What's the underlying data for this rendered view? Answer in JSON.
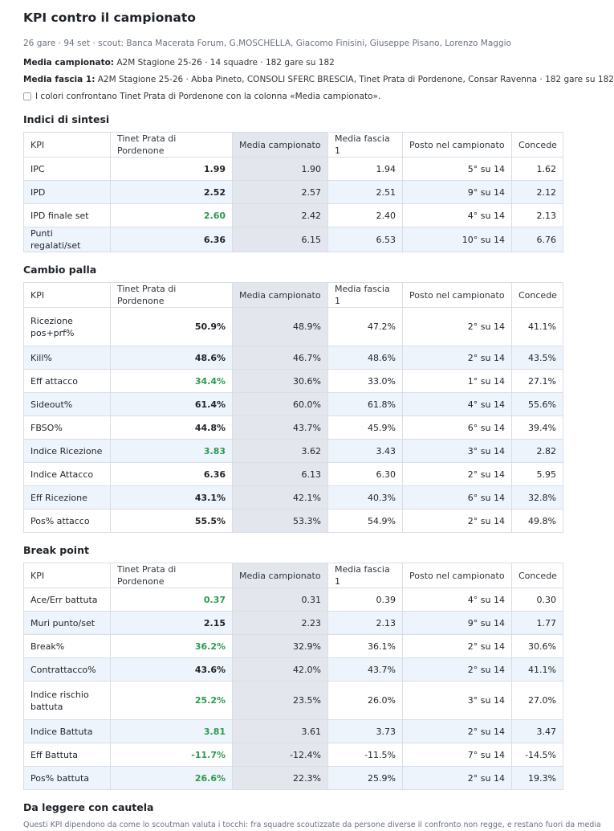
{
  "page": {
    "title": "KPI contro il campionato",
    "meta": "26 gare · 94 set · scout: Banca Macerata Forum, G.MOSCHELLA, Giacomo Finisini, Giuseppe Pisano, Lorenzo Maggio",
    "league_label": "Media campionato:",
    "league_text": "A2M Stagione 25-26 · 14 squadre · 182 gare su 182",
    "band_label": "Media fascia 1:",
    "band_text": "A2M Stagione 25-26 · Abba Pineto, CONSOLI SFERC BRESCIA, Tinet Prata di Pordenone, Consar Ravenna · 182 gare su 182",
    "legend_text": "I colori confrontano Tinet Prata di Pordenone con la colonna «Media campionato»."
  },
  "headers": [
    "KPI",
    "Tinet Prata di Pordenone",
    "Media campionato",
    "Media fascia 1",
    "Posto nel campionato",
    "Concede"
  ],
  "sections": [
    {
      "title": "Indici di sintesi",
      "rows": [
        {
          "kpi": "IPC",
          "team": "1.99",
          "league": "1.90",
          "band": "1.94",
          "rank": "5° su 14",
          "concede": "1.62",
          "good": false
        },
        {
          "kpi": "IPD",
          "team": "2.52",
          "league": "2.57",
          "band": "2.51",
          "rank": "9° su 14",
          "concede": "2.12",
          "good": false
        },
        {
          "kpi": "IPD finale set",
          "team": "2.60",
          "league": "2.42",
          "band": "2.40",
          "rank": "4° su 14",
          "concede": "2.13",
          "good": true
        },
        {
          "kpi": "Punti regalati/set",
          "team": "6.36",
          "league": "6.15",
          "band": "6.53",
          "rank": "10° su 14",
          "concede": "6.76",
          "good": false
        }
      ]
    },
    {
      "title": "Cambio palla",
      "rows": [
        {
          "kpi": "Ricezione pos+prf%",
          "team": "50.9%",
          "league": "48.9%",
          "band": "47.2%",
          "rank": "2° su 14",
          "concede": "41.1%",
          "good": false,
          "tall": true
        },
        {
          "kpi": "Kill%",
          "team": "48.6%",
          "league": "46.7%",
          "band": "48.6%",
          "rank": "2° su 14",
          "concede": "43.5%",
          "good": false
        },
        {
          "kpi": "Eff attacco",
          "team": "34.4%",
          "league": "30.6%",
          "band": "33.0%",
          "rank": "1° su 14",
          "concede": "27.1%",
          "good": true
        },
        {
          "kpi": "Sideout%",
          "team": "61.4%",
          "league": "60.0%",
          "band": "61.8%",
          "rank": "4° su 14",
          "concede": "55.6%",
          "good": false
        },
        {
          "kpi": "FBSO%",
          "team": "44.8%",
          "league": "43.7%",
          "band": "45.9%",
          "rank": "6° su 14",
          "concede": "39.4%",
          "good": false
        },
        {
          "kpi": "Indice Ricezione",
          "team": "3.83",
          "league": "3.62",
          "band": "3.43",
          "rank": "3° su 14",
          "concede": "2.82",
          "good": true
        },
        {
          "kpi": "Indice Attacco",
          "team": "6.36",
          "league": "6.13",
          "band": "6.30",
          "rank": "2° su 14",
          "concede": "5.95",
          "good": false
        },
        {
          "kpi": "Eff Ricezione",
          "team": "43.1%",
          "league": "42.1%",
          "band": "40.3%",
          "rank": "6° su 14",
          "concede": "32.8%",
          "good": false
        },
        {
          "kpi": "Pos% attacco",
          "team": "55.5%",
          "league": "53.3%",
          "band": "54.9%",
          "rank": "2° su 14",
          "concede": "49.8%",
          "good": false
        }
      ]
    },
    {
      "title": "Break point",
      "rows": [
        {
          "kpi": "Ace/Err battuta",
          "team": "0.37",
          "league": "0.31",
          "band": "0.39",
          "rank": "4° su 14",
          "concede": "0.30",
          "good": true
        },
        {
          "kpi": "Muri punto/set",
          "team": "2.15",
          "league": "2.23",
          "band": "2.13",
          "rank": "9° su 14",
          "concede": "1.77",
          "good": false
        },
        {
          "kpi": "Break%",
          "team": "36.2%",
          "league": "32.9%",
          "band": "36.1%",
          "rank": "2° su 14",
          "concede": "30.6%",
          "good": true
        },
        {
          "kpi": "Contrattacco%",
          "team": "43.6%",
          "league": "42.0%",
          "band": "43.7%",
          "rank": "2° su 14",
          "concede": "41.1%",
          "good": false
        },
        {
          "kpi": "Indice rischio battuta",
          "team": "25.2%",
          "league": "23.5%",
          "band": "26.0%",
          "rank": "3° su 14",
          "concede": "27.0%",
          "good": true,
          "tall": true
        },
        {
          "kpi": "Indice Battuta",
          "team": "3.81",
          "league": "3.61",
          "band": "3.73",
          "rank": "2° su 14",
          "concede": "3.47",
          "good": true
        },
        {
          "kpi": "Eff Battuta",
          "team": "-11.7%",
          "league": "-12.4%",
          "band": "-11.5%",
          "rank": "7° su 14",
          "concede": "-14.5%",
          "good": true
        },
        {
          "kpi": "Pos% battuta",
          "team": "26.6%",
          "league": "22.3%",
          "band": "25.9%",
          "rank": "2° su 14",
          "concede": "19.3%",
          "good": true
        }
      ]
    }
  ],
  "caution": {
    "title": "Da leggere con cautela",
    "text": "Questi KPI dipendono da come lo scoutman valuta i tocchi: fra squadre scoutizzate da persone diverse il confronto non regge, e restano fuori da media"
  }
}
